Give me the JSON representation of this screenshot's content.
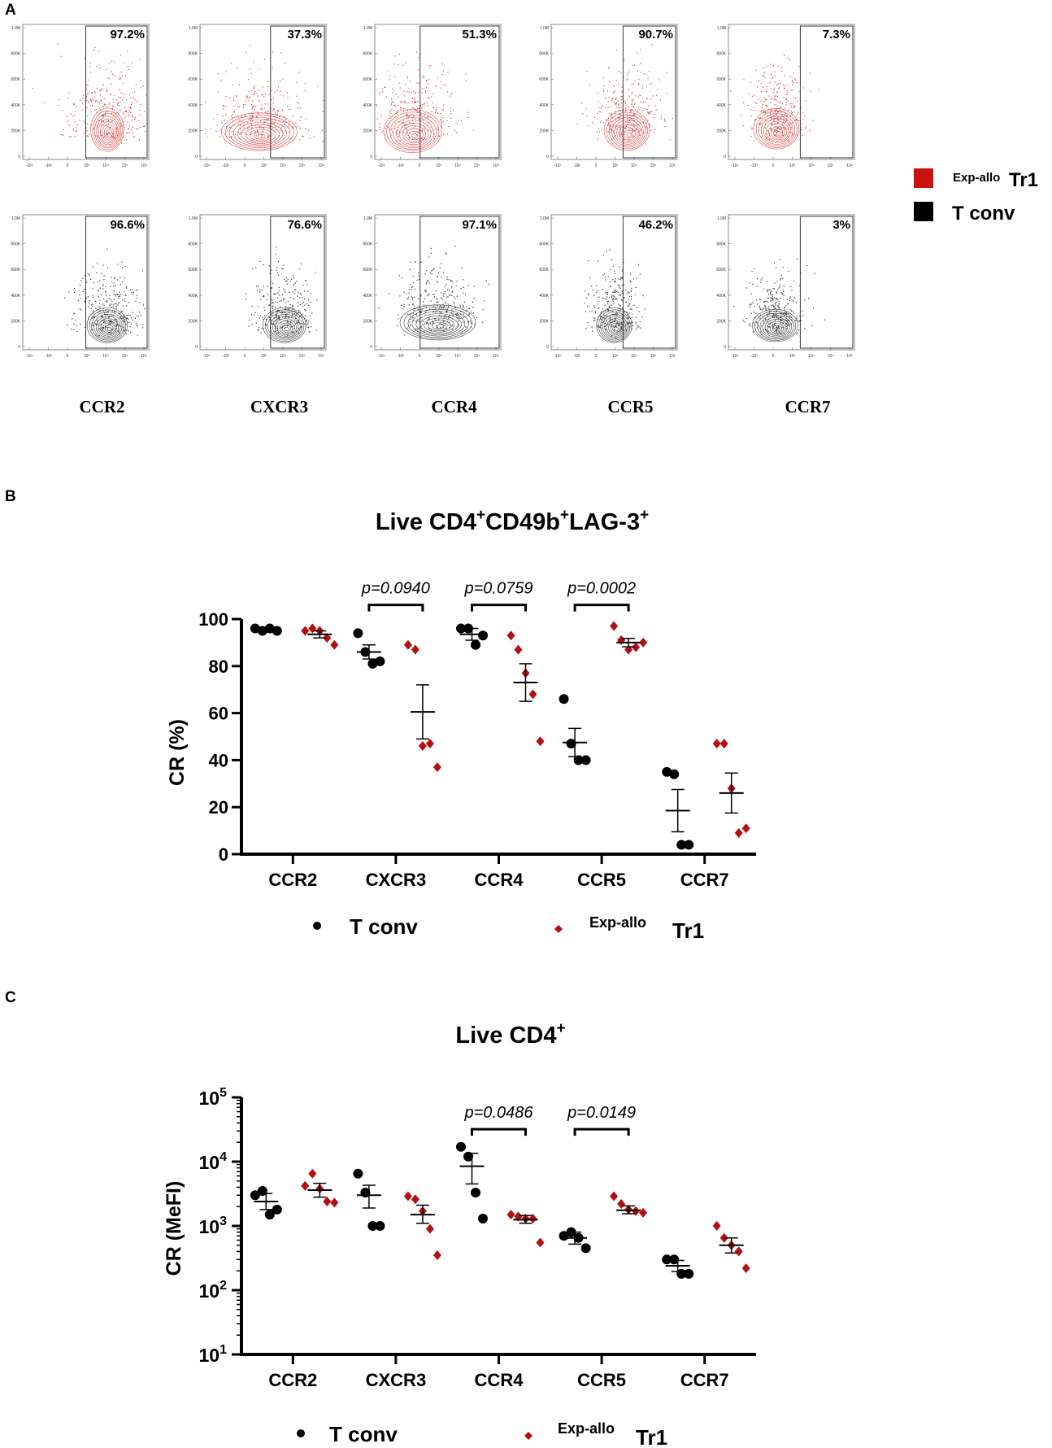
{
  "panel_labels": {
    "a": "A",
    "b": "B",
    "c": "C"
  },
  "colors": {
    "tr1": "#b40d12",
    "tconv": "#000000",
    "tr1_flow": "#d9403f",
    "tconv_flow": "#333333"
  },
  "panel_a": {
    "legend": [
      {
        "sup": "Exp-allo",
        "label": "Tr1",
        "color": "#cc1111"
      },
      {
        "sup": "",
        "label": "T conv",
        "color": "#000000"
      }
    ],
    "plots": [
      {
        "marker": "CCR2",
        "tr1_pct": "97.2%",
        "tconv_pct": "96.6%"
      },
      {
        "marker": "CXCR3",
        "tr1_pct": "37.3%",
        "tconv_pct": "76.6%"
      },
      {
        "marker": "CCR4",
        "tr1_pct": "51.3%",
        "tconv_pct": "97.1%"
      },
      {
        "marker": "CCR5",
        "tr1_pct": "90.7%",
        "tconv_pct": "46.2%"
      },
      {
        "marker": "CCR7",
        "tr1_pct": "7.3%",
        "tconv_pct": "3%"
      }
    ],
    "y_ticks": [
      "1.0M",
      "800K",
      "600K",
      "400K",
      "200K",
      "0"
    ],
    "x_ticks": [
      "-10⁴",
      "-10³",
      "0",
      "10³",
      "10⁴",
      "10⁵",
      "10⁶"
    ]
  },
  "chart_data": [
    {
      "type": "scatter",
      "title_main": "Live CD4",
      "title_parts": [
        "Live CD4",
        "+",
        "CD49b",
        "+",
        "LAG-3",
        "+"
      ],
      "ylabel": "CR (%)",
      "ylim": [
        0,
        100
      ],
      "y_ticks": [
        0,
        20,
        40,
        60,
        80,
        100
      ],
      "categories": [
        "CCR2",
        "CXCR3",
        "CCR4",
        "CCR5",
        "CCR7"
      ],
      "series": [
        {
          "name": "T conv",
          "values": [
            [
              96,
              95,
              96,
              95
            ],
            [
              94,
              86,
              81,
              82
            ],
            [
              96,
              96,
              89,
              93
            ],
            [
              66,
              47,
              40,
              40
            ],
            [
              35,
              34,
              4,
              4
            ]
          ],
          "mean": [
            95.5,
            86,
            93.5,
            47.5,
            18.5
          ],
          "sem": [
            0.5,
            3,
            2.5,
            6,
            9
          ]
        },
        {
          "name": "Tr1",
          "values": [
            [
              95,
              96,
              95,
              92,
              89
            ],
            [
              89,
              87,
              46,
              47,
              37
            ],
            [
              93,
              87,
              77,
              68,
              48
            ],
            [
              97,
              91,
              87,
              88,
              90
            ],
            [
              47,
              47,
              28,
              9,
              11
            ]
          ],
          "mean": [
            93.5,
            60.5,
            73,
            90,
            26
          ],
          "sem": [
            1.5,
            11.5,
            8,
            1.8,
            8.5
          ]
        }
      ],
      "comparisons": [
        {
          "category": "CXCR3",
          "label": "p=0.0940",
          "y": 106
        },
        {
          "category": "CCR4",
          "label": "p=0.0759",
          "y": 106
        },
        {
          "category": "CCR5",
          "label": "p=0.0002",
          "y": 106
        }
      ],
      "legend": {
        "tconv": "T conv",
        "tr1_sup": "Exp-allo",
        "tr1": "Tr1"
      }
    },
    {
      "type": "scatter",
      "title_main": "Live CD4",
      "title_sup": "+",
      "ylabel": "CR (MeFI)",
      "yscale": "log",
      "ylim": [
        10,
        100000
      ],
      "y_ticks": [
        {
          "base": "10",
          "exp": "1"
        },
        {
          "base": "10",
          "exp": "2"
        },
        {
          "base": "10",
          "exp": "3"
        },
        {
          "base": "10",
          "exp": "4"
        },
        {
          "base": "10",
          "exp": "5"
        }
      ],
      "categories": [
        "CCR2",
        "CXCR3",
        "CCR4",
        "CCR5",
        "CCR7"
      ],
      "series": [
        {
          "name": "T conv",
          "values": [
            [
              3000,
              3500,
              1500,
              1800
            ],
            [
              6500,
              3300,
              1000,
              1000
            ],
            [
              17000,
              12000,
              3300,
              1300
            ],
            [
              700,
              800,
              650,
              450
            ],
            [
              300,
              300,
              180,
              180
            ]
          ],
          "mean": [
            2400,
            3000,
            8500,
            650,
            240
          ],
          "sem_low": [
            1800,
            1900,
            4500,
            520,
            195
          ],
          "sem_high": [
            3200,
            4300,
            13500,
            800,
            290
          ]
        },
        {
          "name": "Tr1",
          "values": [
            [
              4200,
              6500,
              3800,
              2400,
              2300
            ],
            [
              2900,
              2600,
              1700,
              900,
              350
            ],
            [
              1500,
              1400,
              1300,
              1300,
              550
            ],
            [
              2900,
              2200,
              1800,
              1700,
              1600
            ],
            [
              1000,
              650,
              500,
              400,
              220
            ]
          ],
          "mean": [
            3600,
            1500,
            1250,
            1750,
            500
          ],
          "sem_low": [
            2800,
            1100,
            1100,
            1550,
            380
          ],
          "sem_high": [
            4600,
            2100,
            1450,
            2050,
            650
          ]
        }
      ],
      "comparisons": [
        {
          "category": "CCR4",
          "label": "p=0.0486",
          "y": 32000
        },
        {
          "category": "CCR5",
          "label": "p=0.0149",
          "y": 32000
        }
      ],
      "legend": {
        "tconv": "T conv",
        "tr1_sup": "Exp-allo",
        "tr1": "Tr1"
      }
    }
  ]
}
